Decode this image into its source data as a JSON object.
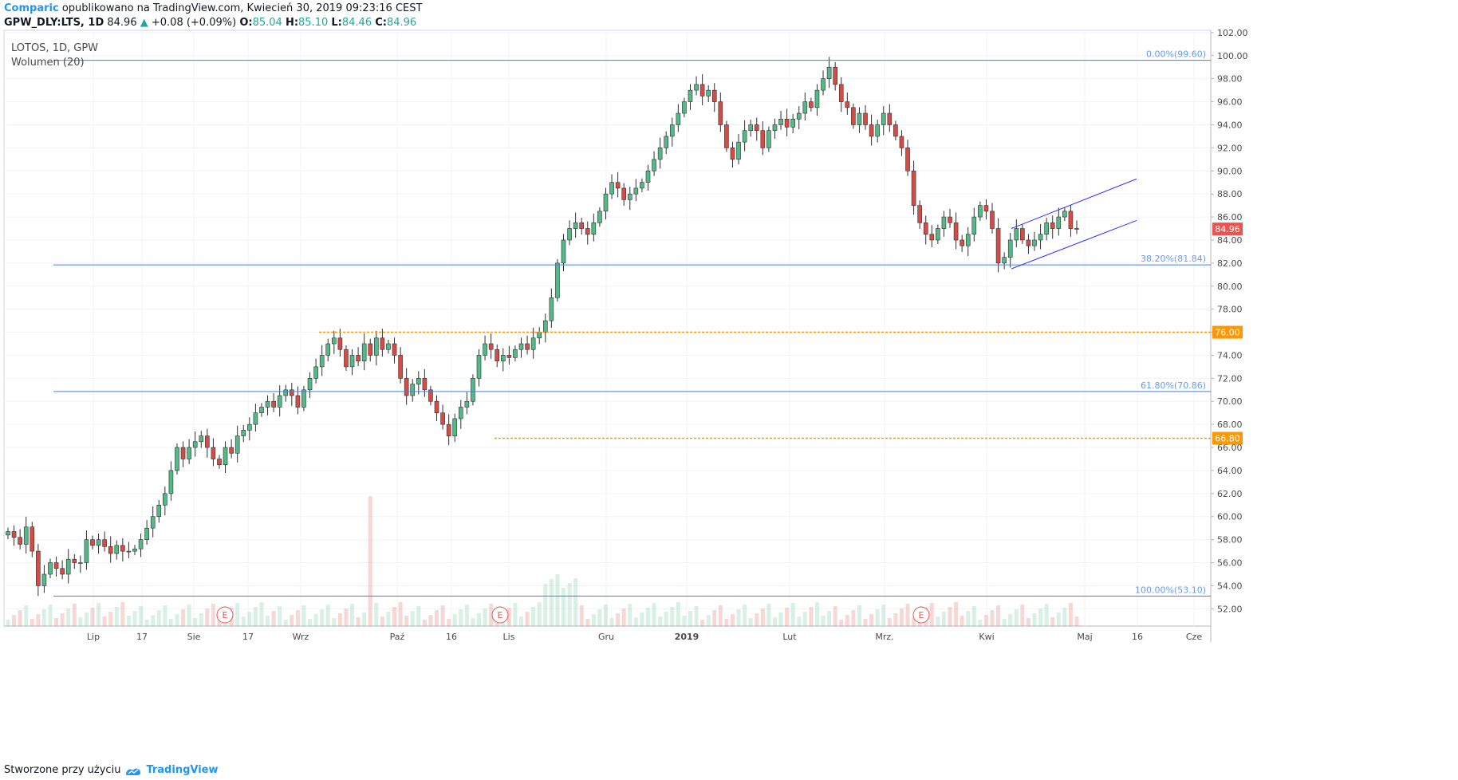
{
  "header": {
    "brand": "Comparic",
    "published": "opublikowano na TradingView.com, Kwiecień 30, 2019 09:23:16 CEST",
    "symbol": "GPW_DLY:LTS, 1D",
    "last": "84.96",
    "change": "+0.08 (+0.09%)",
    "o_label": "O:",
    "o_value": "85.04",
    "h_label": "H:",
    "h_value": "85.10",
    "l_label": "L:",
    "l_value": "84.46",
    "c_label": "C:",
    "c_value": "84.96"
  },
  "legend": {
    "title": "LOTOS, 1D, GPW",
    "volume": "Wolumen (20)"
  },
  "footer": {
    "text": "Stworzone przy użyciu",
    "brand": "TradingView"
  },
  "colors": {
    "up": "#26a69a",
    "down": "#ef5350",
    "up_body": "#53b987",
    "down_body": "#d64c44",
    "fib": "#2962ff",
    "level": "#ff9800",
    "channel": "#3030ff"
  },
  "chart_data": {
    "type": "candlestick",
    "ylim": [
      50.5,
      102.2
    ],
    "y_ticks": [
      "102.00",
      "100.00",
      "98.00",
      "96.00",
      "94.00",
      "92.00",
      "90.00",
      "88.00",
      "86.00",
      "84.00",
      "82.00",
      "80.00",
      "78.00",
      "76.00",
      "74.00",
      "72.00",
      "70.00",
      "68.00",
      "66.00",
      "64.00",
      "62.00",
      "60.00",
      "58.00",
      "56.00",
      "54.00",
      "52.00"
    ],
    "x_labels": [
      "Lip",
      "17",
      "Sie",
      "17",
      "Wrz",
      "Paź",
      "16",
      "Lis",
      "Gru",
      "2019",
      "Lut",
      "Mrz.",
      "Kwi",
      "Maj",
      "16",
      "Cze"
    ],
    "close_series": [
      58.7,
      58.2,
      57.6,
      59.1,
      57.0,
      54.0,
      55.0,
      56.0,
      55.5,
      55.0,
      56.3,
      56.0,
      56.0,
      58.0,
      57.5,
      58.0,
      57.4,
      56.8,
      57.5,
      57.0,
      57.0,
      57.2,
      58.0,
      59.0,
      60.0,
      61.0,
      62.0,
      64.0,
      66.0,
      65.0,
      66.0,
      66.5,
      67.0,
      66.0,
      65.0,
      64.5,
      66.0,
      65.5,
      67.0,
      67.5,
      68.0,
      69.0,
      69.5,
      70.0,
      69.5,
      70.5,
      71.0,
      70.5,
      69.5,
      71.0,
      72.0,
      73.0,
      74.0,
      75.0,
      75.5,
      74.5,
      73.0,
      74.0,
      73.5,
      75.0,
      74.0,
      75.5,
      74.5,
      75.0,
      74.0,
      72.0,
      70.5,
      71.5,
      72.0,
      71.0,
      70.0,
      69.0,
      68.0,
      67.0,
      68.5,
      69.5,
      70.0,
      72.0,
      74.0,
      75.0,
      74.5,
      73.5,
      74.0,
      73.8,
      74.5,
      75.0,
      74.5,
      75.5,
      76.0,
      77.0,
      79.0,
      82.0,
      84.0,
      85.0,
      85.5,
      85.0,
      84.5,
      85.5,
      86.5,
      88.0,
      89.0,
      88.5,
      87.5,
      88.0,
      88.5,
      89.0,
      90.0,
      91.0,
      92.0,
      93.0,
      94.0,
      95.0,
      96.0,
      97.0,
      97.5,
      96.5,
      97.0,
      96.0,
      94.0,
      92.0,
      91.0,
      92.5,
      93.5,
      94.0,
      93.5,
      92.0,
      93.5,
      94.0,
      94.5,
      93.8,
      94.5,
      95.0,
      96.0,
      95.5,
      97.0,
      98.0,
      99.0,
      97.5,
      96.0,
      95.5,
      94.0,
      95.0,
      94.0,
      93.0,
      94.0,
      95.0,
      94.0,
      93.0,
      92.0,
      90.0,
      87.0,
      85.5,
      84.5,
      84.0,
      85.0,
      86.0,
      85.5,
      84.0,
      83.5,
      84.5,
      86.0,
      87.0,
      86.5,
      85.0,
      82.0,
      82.5,
      84.0,
      85.0,
      84.0,
      83.5,
      84.0,
      84.5,
      85.5,
      85.0,
      86.0,
      86.5,
      85.0,
      84.96
    ],
    "annotations": [
      {
        "type": "fib",
        "label": "0.00%(99.60)",
        "value": 99.6
      },
      {
        "type": "fib",
        "label": "38.20%(81.84)",
        "value": 81.84
      },
      {
        "type": "fib",
        "label": "61.80%(70.86)",
        "value": 70.86
      },
      {
        "type": "fib",
        "label": "100.00%(53.10)",
        "value": 53.1
      },
      {
        "type": "level",
        "label": "76.00",
        "value": 76.0
      },
      {
        "type": "level",
        "label": "66.80",
        "value": 66.8
      }
    ],
    "price_label": "84.96",
    "earnings_markers": [
      "E",
      "E",
      "E"
    ]
  }
}
